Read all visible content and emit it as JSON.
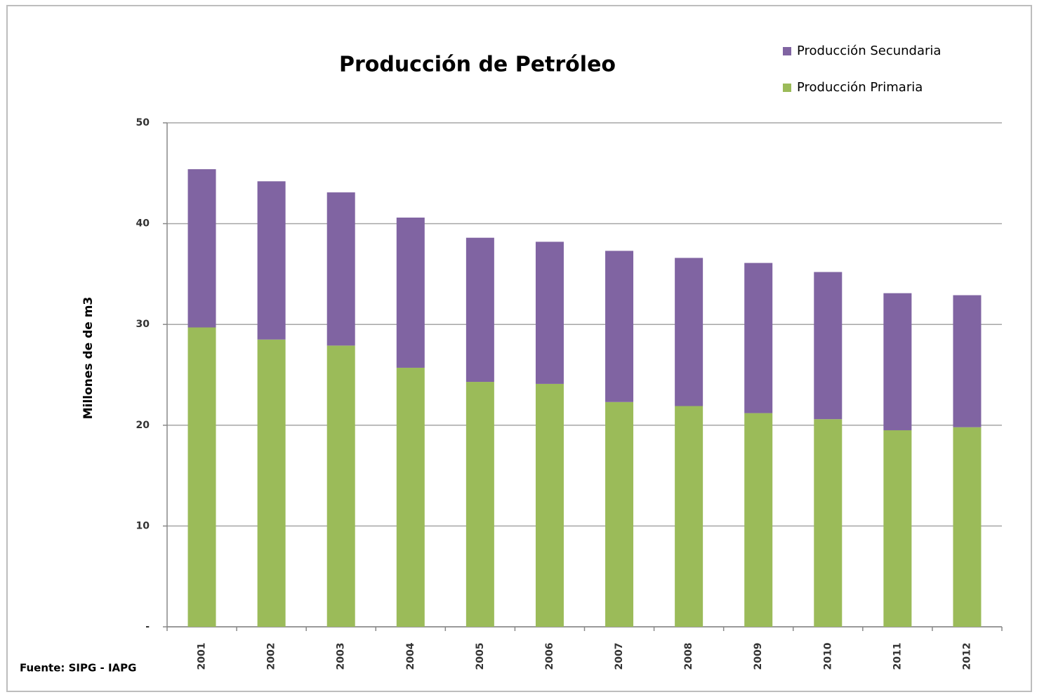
{
  "chart_data": {
    "type": "stacked_bar",
    "title": "Producción de Petróleo",
    "y_label": "Millones de de m3",
    "source": "Fuente: SIPG - IAPG",
    "categories": [
      "2001",
      "2002",
      "2003",
      "2004",
      "2005",
      "2006",
      "2007",
      "2008",
      "2009",
      "2010",
      "2011",
      "2012"
    ],
    "series": [
      {
        "name": "Producción Primaria",
        "color": "#9bbb59",
        "values": [
          29.7,
          28.5,
          27.9,
          25.7,
          24.3,
          24.1,
          22.3,
          21.9,
          21.2,
          20.6,
          19.5,
          19.8
        ]
      },
      {
        "name": "Producción Secundaria",
        "color": "#8064a2",
        "values": [
          15.7,
          15.7,
          15.2,
          14.9,
          14.3,
          14.1,
          15.0,
          14.7,
          14.9,
          14.6,
          13.6,
          13.1
        ]
      }
    ],
    "ylim": [
      0,
      50
    ],
    "yticks": [
      {
        "value": 0,
        "label": "-"
      },
      10,
      20,
      30,
      40,
      50
    ],
    "grid": true,
    "legend": "upper right"
  }
}
